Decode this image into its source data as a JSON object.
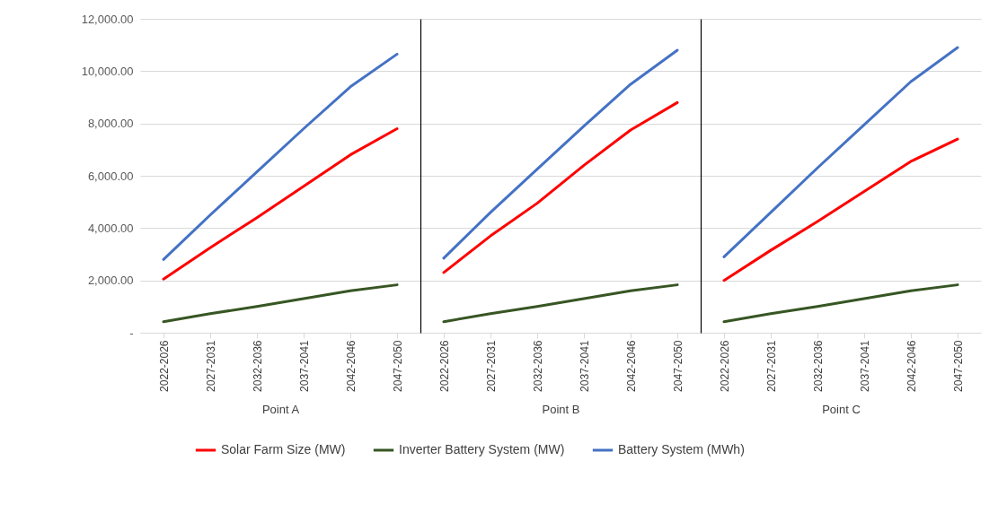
{
  "chart_data": [
    {
      "type": "line",
      "xlabel": "Point A",
      "categories": [
        "2022-2026",
        "2027-2031",
        "2032-2036",
        "2037-2041",
        "2042-2046",
        "2047-2050"
      ],
      "ylim": [
        0,
        12000
      ],
      "yticks": [
        {
          "value": 0,
          "label": "-"
        },
        {
          "value": 2000,
          "label": "2,000.00"
        },
        {
          "value": 4000,
          "label": "4,000.00"
        },
        {
          "value": 6000,
          "label": "6,000.00"
        },
        {
          "value": 8000,
          "label": "8,000.00"
        },
        {
          "value": 10000,
          "label": "10,000.00"
        },
        {
          "value": 12000,
          "label": "12,000.00"
        }
      ],
      "grid": "y",
      "legend": "bottom",
      "line_style": "solid",
      "series": [
        {
          "name": "Solar Farm Size (MW)",
          "color": "#ff0000",
          "values": [
            2050,
            3250,
            4400,
            5600,
            6800,
            7800
          ]
        },
        {
          "name": "Inverter Battery System (MW)",
          "color": "#375623",
          "values": [
            420,
            730,
            1000,
            1300,
            1600,
            1830
          ]
        },
        {
          "name": "Battery System (MWh)",
          "color": "#4472c4",
          "values": [
            2800,
            4500,
            6150,
            7800,
            9400,
            10650
          ]
        }
      ]
    },
    {
      "type": "line",
      "xlabel": "Point B",
      "categories": [
        "2022-2026",
        "2027-2031",
        "2032-2036",
        "2037-2041",
        "2042-2046",
        "2047-2050"
      ],
      "ylim": [
        0,
        12000
      ],
      "yticks": [
        0,
        2000,
        4000,
        6000,
        8000,
        10000,
        12000
      ],
      "grid": "y",
      "tick_labels": "x",
      "line_style": "solid",
      "series": [
        {
          "color": "#ff0000",
          "values": [
            2300,
            3700,
            4950,
            6400,
            7750,
            8800
          ]
        },
        {
          "color": "#375623",
          "values": [
            420,
            730,
            1000,
            1300,
            1600,
            1830
          ]
        },
        {
          "color": "#4472c4",
          "values": [
            2850,
            4600,
            6250,
            7900,
            9500,
            10800
          ]
        }
      ]
    },
    {
      "type": "line",
      "xlabel": "Point C",
      "categories": [
        "2022-2026",
        "2027-2031",
        "2032-2036",
        "2037-2041",
        "2042-2046",
        "2047-2050"
      ],
      "ylim": [
        0,
        12000
      ],
      "yticks": [
        0,
        2000,
        4000,
        6000,
        8000,
        10000,
        12000
      ],
      "grid": "y",
      "tick_labels": "x",
      "line_style": "solid",
      "series": [
        {
          "color": "#ff0000",
          "values": [
            2000,
            3150,
            4250,
            5400,
            6550,
            7400
          ]
        },
        {
          "color": "#375623",
          "values": [
            420,
            730,
            1000,
            1300,
            1600,
            1830
          ]
        },
        {
          "color": "#4472c4",
          "values": [
            2900,
            4600,
            6300,
            7950,
            9600,
            10900
          ]
        }
      ]
    }
  ]
}
